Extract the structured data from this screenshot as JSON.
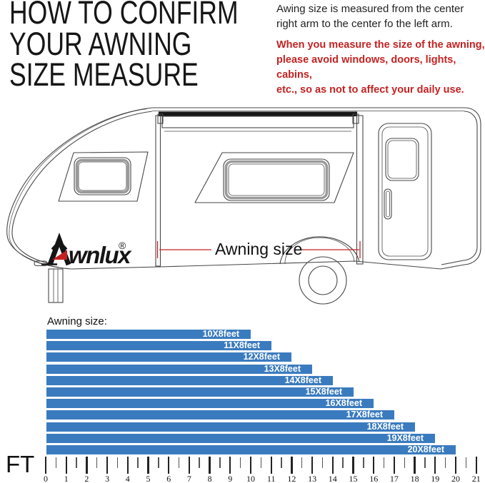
{
  "header": {
    "title": "HOW TO CONFIRM\nYOUR AWNING\nSIZE MEASURE"
  },
  "notes": {
    "measure": "Awing size is measured from the center\nright arm to the center fo the left arm.",
    "warning": "When you measure the size of the awning,\nplease avoid windows, doors, lights, cabins,\netc., so as not to affect your daily use."
  },
  "diagram": {
    "brand": "wnlux",
    "registered_mark": "®",
    "measure_label": "Awning size"
  },
  "chart_data": {
    "type": "bar",
    "orientation": "horizontal",
    "title": "Awning size:",
    "categories": [
      "10X8feet",
      "11X8feet",
      "12X8feet",
      "13X8feet",
      "14X8feet",
      "15X8feet",
      "16X8feet",
      "17X8feet",
      "18X8feet",
      "19X8feet",
      "20X8feet"
    ],
    "values": [
      10,
      11,
      12,
      13,
      14,
      15,
      16,
      17,
      18,
      19,
      20
    ],
    "xlabel": "FT",
    "xlim": [
      0,
      21
    ],
    "x_ticks": [
      0,
      1,
      2,
      3,
      4,
      5,
      6,
      7,
      8,
      9,
      10,
      11,
      12,
      13,
      14,
      15,
      16,
      17,
      18,
      19,
      20,
      21
    ],
    "grid": false,
    "legend": "none",
    "bar_color": "#3a7bbf",
    "bar_label_color": "#ffffff"
  },
  "colors": {
    "accent_red": "#c42222",
    "bar_blue": "#3a7bbf",
    "line_gray": "#474747",
    "text_dark": "#161616"
  }
}
